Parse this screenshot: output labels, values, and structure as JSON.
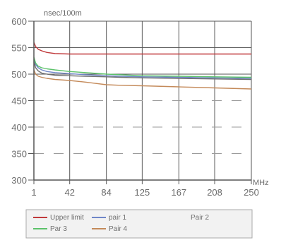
{
  "chart_data": {
    "type": "line",
    "ylabel": "nsec/100m",
    "xlabel": "MHz",
    "x_ticks": [
      "1",
      "42",
      "84",
      "125",
      "167",
      "208",
      "250"
    ],
    "y_ticks": [
      "300",
      "350",
      "400",
      "450",
      "500",
      "550",
      "600"
    ],
    "xlim": [
      1,
      250
    ],
    "ylim": [
      300,
      600
    ],
    "grid": true,
    "legend_placement": "bottom",
    "series": [
      {
        "name": "Upper limit",
        "color": "#c0393b",
        "x": [
          1,
          3,
          6,
          10,
          16,
          25,
          42,
          84,
          125,
          167,
          208,
          250
        ],
        "y": [
          560,
          552,
          547,
          544,
          541,
          539,
          538,
          538,
          538,
          538,
          538,
          538
        ]
      },
      {
        "name": "pair 1",
        "color": "#6f86c8",
        "x": [
          1,
          3,
          6,
          10,
          16,
          25,
          42,
          60,
          84,
          100,
          125,
          167,
          208,
          250
        ],
        "y": [
          528,
          518,
          512,
          508,
          505,
          503,
          501,
          499,
          497,
          496,
          495,
          494,
          493,
          492
        ]
      },
      {
        "name": "Pair 2",
        "color": "#707070",
        "x": [
          1,
          3,
          6,
          10,
          16,
          25,
          42,
          60,
          84,
          100,
          125,
          167,
          208,
          250
        ],
        "y": [
          523,
          512,
          506,
          502,
          500,
          498,
          497,
          496,
          495,
          494,
          493,
          492,
          491,
          490
        ]
      },
      {
        "name": "Par 3",
        "color": "#5cc26a",
        "x": [
          1,
          3,
          6,
          10,
          16,
          25,
          42,
          60,
          84,
          100,
          125,
          167,
          208,
          250
        ],
        "y": [
          532,
          521,
          515,
          512,
          510,
          508,
          505,
          503,
          500,
          499,
          497,
          496,
          495,
          494
        ]
      },
      {
        "name": "Pair 4",
        "color": "#c48a5a",
        "x": [
          1,
          3,
          6,
          10,
          16,
          25,
          42,
          60,
          84,
          100,
          125,
          167,
          208,
          250
        ],
        "y": [
          508,
          500,
          496,
          494,
          492,
          490,
          488,
          485,
          480,
          479,
          478,
          476,
          474,
          472
        ]
      }
    ],
    "colors": {
      "axis": "#555555",
      "grid_solid": "#555555",
      "grid_dash": "#9a9a9a",
      "text": "#6b6b6b",
      "legend_border": "#aaaaaa",
      "legend_bg": "#f2f2f2"
    }
  }
}
